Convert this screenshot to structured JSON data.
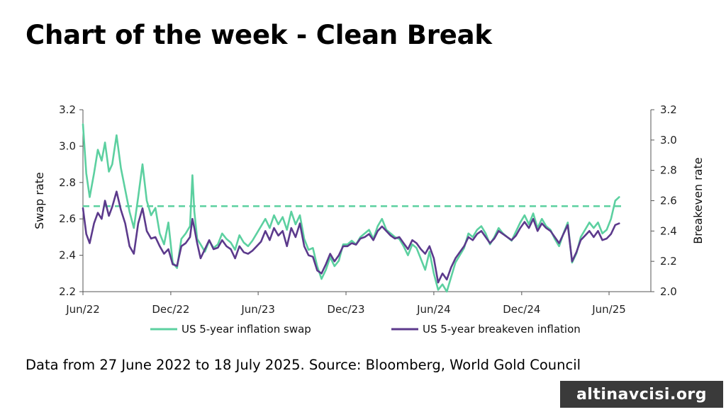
{
  "header": {
    "title": "Chart of the week - Clean Break"
  },
  "footer": {
    "source": "Data from 27 June 2022 to 18 July 2025. Source: Bloomberg, World Gold Council"
  },
  "watermark": {
    "text": "altinavcisi.org"
  },
  "chart_data": {
    "type": "line",
    "title": "",
    "x_tick_labels": [
      "Jun/22",
      "Dec/22",
      "Jun/23",
      "Dec/23",
      "Jun/24",
      "Dec/24",
      "Jun/25"
    ],
    "left_axis": {
      "label": "Swap rate",
      "ylim": [
        2.2,
        3.2
      ],
      "tick_labels": [
        "2.2",
        "2.4",
        "2.6",
        "2.8",
        "3.0",
        "3.2"
      ]
    },
    "right_axis": {
      "label": "Breakeven rate",
      "ylim": [
        2.0,
        3.2
      ],
      "tick_labels": [
        "2.0",
        "2.2",
        "2.4",
        "2.6",
        "2.8",
        "3.0",
        "3.2"
      ]
    },
    "grid": false,
    "legend_position": "bottom",
    "reference_line": {
      "axis": "left",
      "value": 2.67,
      "style": "dashed",
      "color": "#5cd0a0"
    },
    "series": [
      {
        "name": "US 5-year inflation swap",
        "axis": "left",
        "color": "#5cd0a0",
        "x": [
          "2022-06-27",
          "2022-07-04",
          "2022-07-11",
          "2022-07-20",
          "2022-07-28",
          "2022-08-05",
          "2022-08-12",
          "2022-08-20",
          "2022-08-27",
          "2022-09-05",
          "2022-09-14",
          "2022-09-23",
          "2022-10-02",
          "2022-10-11",
          "2022-10-20",
          "2022-10-29",
          "2022-11-07",
          "2022-11-16",
          "2022-11-25",
          "2022-12-04",
          "2022-12-13",
          "2022-12-22",
          "2022-12-31",
          "2023-01-09",
          "2023-01-18",
          "2023-01-27",
          "2023-02-05",
          "2023-02-10",
          "2023-02-14",
          "2023-02-20",
          "2023-02-27",
          "2023-03-08",
          "2023-03-17",
          "2023-03-26",
          "2023-04-04",
          "2023-04-13",
          "2023-04-22",
          "2023-05-01",
          "2023-05-10",
          "2023-05-19",
          "2023-05-28",
          "2023-06-06",
          "2023-06-15",
          "2023-06-24",
          "2023-07-03",
          "2023-07-12",
          "2023-07-21",
          "2023-07-30",
          "2023-08-08",
          "2023-08-17",
          "2023-08-26",
          "2023-09-04",
          "2023-09-13",
          "2023-09-22",
          "2023-10-01",
          "2023-10-10",
          "2023-10-19",
          "2023-10-28",
          "2023-11-06",
          "2023-11-15",
          "2023-11-24",
          "2023-12-03",
          "2023-12-12",
          "2023-12-21",
          "2023-12-30",
          "2024-01-08",
          "2024-01-17",
          "2024-01-26",
          "2024-02-04",
          "2024-02-13",
          "2024-02-22",
          "2024-03-02",
          "2024-03-11",
          "2024-03-20",
          "2024-03-29",
          "2024-04-07",
          "2024-04-16",
          "2024-04-25",
          "2024-05-04",
          "2024-05-13",
          "2024-05-22",
          "2024-05-31",
          "2024-06-09",
          "2024-06-18",
          "2024-06-27",
          "2024-07-06",
          "2024-07-15",
          "2024-07-24",
          "2024-08-02",
          "2024-08-11",
          "2024-08-20",
          "2024-08-29",
          "2024-09-07",
          "2024-09-16",
          "2024-09-25",
          "2024-10-04",
          "2024-10-13",
          "2024-10-22",
          "2024-10-31",
          "2024-11-09",
          "2024-11-18",
          "2024-11-27",
          "2024-12-06",
          "2024-12-15",
          "2024-12-24",
          "2025-01-02",
          "2025-01-11",
          "2025-01-20",
          "2025-01-29",
          "2025-02-07",
          "2025-02-16",
          "2025-02-25",
          "2025-03-06",
          "2025-03-15",
          "2025-03-24",
          "2025-04-02",
          "2025-04-11",
          "2025-04-20",
          "2025-04-29",
          "2025-05-08",
          "2025-05-17",
          "2025-05-26",
          "2025-06-04",
          "2025-06-13",
          "2025-06-22",
          "2025-07-01",
          "2025-07-10",
          "2025-07-18"
        ],
        "values": [
          3.12,
          2.85,
          2.72,
          2.85,
          2.98,
          2.92,
          3.02,
          2.86,
          2.9,
          3.06,
          2.88,
          2.76,
          2.64,
          2.55,
          2.72,
          2.9,
          2.7,
          2.62,
          2.66,
          2.52,
          2.46,
          2.58,
          2.36,
          2.33,
          2.49,
          2.52,
          2.56,
          2.84,
          2.64,
          2.49,
          2.46,
          2.42,
          2.48,
          2.44,
          2.46,
          2.52,
          2.49,
          2.47,
          2.43,
          2.51,
          2.47,
          2.45,
          2.48,
          2.52,
          2.56,
          2.6,
          2.55,
          2.62,
          2.57,
          2.61,
          2.54,
          2.64,
          2.57,
          2.62,
          2.49,
          2.43,
          2.44,
          2.34,
          2.27,
          2.32,
          2.39,
          2.34,
          2.37,
          2.46,
          2.46,
          2.48,
          2.46,
          2.5,
          2.52,
          2.54,
          2.49,
          2.56,
          2.6,
          2.54,
          2.52,
          2.5,
          2.49,
          2.45,
          2.4,
          2.46,
          2.44,
          2.38,
          2.32,
          2.42,
          2.3,
          2.21,
          2.24,
          2.2,
          2.28,
          2.36,
          2.4,
          2.44,
          2.52,
          2.5,
          2.54,
          2.56,
          2.52,
          2.46,
          2.5,
          2.55,
          2.52,
          2.5,
          2.48,
          2.53,
          2.58,
          2.62,
          2.57,
          2.63,
          2.55,
          2.6,
          2.56,
          2.54,
          2.49,
          2.45,
          2.52,
          2.58,
          2.36,
          2.41,
          2.5,
          2.54,
          2.58,
          2.55,
          2.58,
          2.52,
          2.54,
          2.6,
          2.7,
          2.72
        ]
      },
      {
        "name": "US 5-year breakeven inflation",
        "axis": "right",
        "color": "#5c3a8c",
        "x": [
          "2022-06-27",
          "2022-07-04",
          "2022-07-11",
          "2022-07-20",
          "2022-07-28",
          "2022-08-05",
          "2022-08-12",
          "2022-08-20",
          "2022-08-27",
          "2022-09-05",
          "2022-09-14",
          "2022-09-23",
          "2022-10-02",
          "2022-10-11",
          "2022-10-20",
          "2022-10-29",
          "2022-11-07",
          "2022-11-16",
          "2022-11-25",
          "2022-12-04",
          "2022-12-13",
          "2022-12-22",
          "2022-12-31",
          "2023-01-09",
          "2023-01-18",
          "2023-01-27",
          "2023-02-05",
          "2023-02-10",
          "2023-02-14",
          "2023-02-20",
          "2023-02-27",
          "2023-03-08",
          "2023-03-17",
          "2023-03-26",
          "2023-04-04",
          "2023-04-13",
          "2023-04-22",
          "2023-05-01",
          "2023-05-10",
          "2023-05-19",
          "2023-05-28",
          "2023-06-06",
          "2023-06-15",
          "2023-06-24",
          "2023-07-03",
          "2023-07-12",
          "2023-07-21",
          "2023-07-30",
          "2023-08-08",
          "2023-08-17",
          "2023-08-26",
          "2023-09-04",
          "2023-09-13",
          "2023-09-22",
          "2023-10-01",
          "2023-10-10",
          "2023-10-19",
          "2023-10-28",
          "2023-11-06",
          "2023-11-15",
          "2023-11-24",
          "2023-12-03",
          "2023-12-12",
          "2023-12-21",
          "2023-12-30",
          "2024-01-08",
          "2024-01-17",
          "2024-01-26",
          "2024-02-04",
          "2024-02-13",
          "2024-02-22",
          "2024-03-02",
          "2024-03-11",
          "2024-03-20",
          "2024-03-29",
          "2024-04-07",
          "2024-04-16",
          "2024-04-25",
          "2024-05-04",
          "2024-05-13",
          "2024-05-22",
          "2024-05-31",
          "2024-06-09",
          "2024-06-18",
          "2024-06-27",
          "2024-07-06",
          "2024-07-15",
          "2024-07-24",
          "2024-08-02",
          "2024-08-11",
          "2024-08-20",
          "2024-08-29",
          "2024-09-07",
          "2024-09-16",
          "2024-09-25",
          "2024-10-04",
          "2024-10-13",
          "2024-10-22",
          "2024-10-31",
          "2024-11-09",
          "2024-11-18",
          "2024-11-27",
          "2024-12-06",
          "2024-12-15",
          "2024-12-24",
          "2025-01-02",
          "2025-01-11",
          "2025-01-20",
          "2025-01-29",
          "2025-02-07",
          "2025-02-16",
          "2025-02-25",
          "2025-03-06",
          "2025-03-15",
          "2025-03-24",
          "2025-04-02",
          "2025-04-11",
          "2025-04-20",
          "2025-04-29",
          "2025-05-08",
          "2025-05-17",
          "2025-05-26",
          "2025-06-04",
          "2025-06-13",
          "2025-06-22",
          "2025-07-01",
          "2025-07-10",
          "2025-07-18"
        ],
        "values": [
          2.55,
          2.38,
          2.32,
          2.45,
          2.52,
          2.48,
          2.6,
          2.5,
          2.56,
          2.66,
          2.54,
          2.45,
          2.3,
          2.25,
          2.45,
          2.55,
          2.4,
          2.35,
          2.36,
          2.3,
          2.25,
          2.28,
          2.18,
          2.17,
          2.3,
          2.32,
          2.36,
          2.48,
          2.42,
          2.32,
          2.22,
          2.28,
          2.34,
          2.28,
          2.29,
          2.34,
          2.3,
          2.28,
          2.22,
          2.3,
          2.26,
          2.25,
          2.27,
          2.3,
          2.33,
          2.4,
          2.34,
          2.42,
          2.37,
          2.4,
          2.3,
          2.42,
          2.36,
          2.45,
          2.3,
          2.24,
          2.23,
          2.14,
          2.12,
          2.18,
          2.25,
          2.2,
          2.24,
          2.3,
          2.3,
          2.32,
          2.31,
          2.35,
          2.36,
          2.38,
          2.34,
          2.4,
          2.43,
          2.4,
          2.37,
          2.35,
          2.36,
          2.32,
          2.28,
          2.34,
          2.32,
          2.28,
          2.25,
          2.3,
          2.22,
          2.06,
          2.12,
          2.08,
          2.16,
          2.22,
          2.26,
          2.3,
          2.36,
          2.34,
          2.38,
          2.4,
          2.36,
          2.32,
          2.35,
          2.4,
          2.38,
          2.36,
          2.34,
          2.37,
          2.42,
          2.46,
          2.42,
          2.48,
          2.4,
          2.45,
          2.42,
          2.4,
          2.36,
          2.32,
          2.38,
          2.44,
          2.2,
          2.26,
          2.34,
          2.37,
          2.4,
          2.36,
          2.4,
          2.34,
          2.35,
          2.38,
          2.44,
          2.45
        ]
      }
    ],
    "legend": [
      {
        "label": "US 5-year inflation swap",
        "color": "#5cd0a0"
      },
      {
        "label": "US 5-year breakeven inflation",
        "color": "#5c3a8c"
      }
    ]
  }
}
